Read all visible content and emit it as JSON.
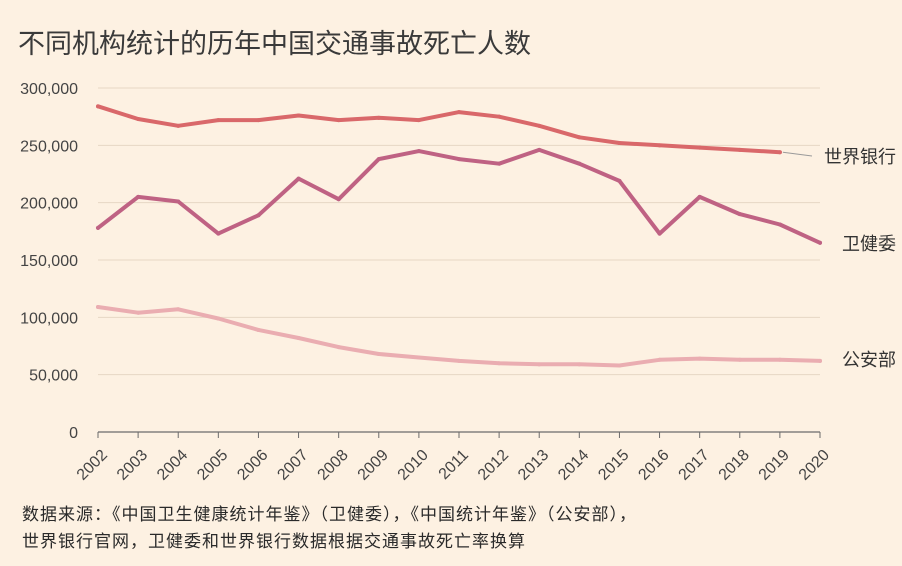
{
  "chart_data": {
    "type": "line",
    "title": "不同机构统计的历年中国交通事故死亡人数",
    "xlabel": "",
    "ylabel": "",
    "x": [
      "2002",
      "2003",
      "2004",
      "2005",
      "2006",
      "2007",
      "2008",
      "2009",
      "2010",
      "2011",
      "2012",
      "2013",
      "2014",
      "2015",
      "2016",
      "2017",
      "2018",
      "2019",
      "2020"
    ],
    "ylim": [
      0,
      300000
    ],
    "yticks": [
      0,
      50000,
      100000,
      150000,
      200000,
      250000,
      300000
    ],
    "ytick_labels": [
      "0",
      "50,000",
      "100,000",
      "150,000",
      "200,000",
      "250,000",
      "300,000"
    ],
    "grid": "horizontal",
    "legend": "direct labels at line ends",
    "series": [
      {
        "name": "世界银行",
        "color": "#d9686a",
        "values": [
          284000,
          273000,
          267000,
          272000,
          272000,
          276000,
          272000,
          274000,
          272000,
          279000,
          275000,
          267000,
          257000,
          252000,
          250000,
          248000,
          246000,
          244000,
          null
        ]
      },
      {
        "name": "卫健委",
        "color": "#bf6283",
        "values": [
          178000,
          205000,
          201000,
          173000,
          189000,
          221000,
          203000,
          238000,
          245000,
          238000,
          234000,
          246000,
          234000,
          219000,
          173000,
          205000,
          190000,
          181000,
          165000
        ]
      },
      {
        "name": "公安部",
        "color": "#eaadb1",
        "values": [
          109000,
          104000,
          107000,
          99000,
          89000,
          82000,
          74000,
          68000,
          65000,
          62000,
          60000,
          59000,
          59000,
          58000,
          63000,
          64000,
          63000,
          63000,
          62000
        ]
      }
    ]
  },
  "source": {
    "line1": "数据来源：《中国卫生健康统计年鉴》（卫健委），《中国统计年鉴》（公安部），",
    "line2": "世界银行官网，卫健委和世界银行数据根据交通事故死亡率换算"
  }
}
